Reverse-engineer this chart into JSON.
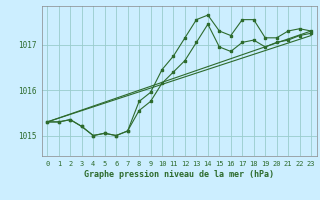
{
  "title": "Graphe pression niveau de la mer (hPa)",
  "background_color": "#cceeff",
  "grid_color": "#99cccc",
  "line_color": "#2d6b2d",
  "x_ticks": [
    0,
    1,
    2,
    3,
    4,
    5,
    6,
    7,
    8,
    9,
    10,
    11,
    12,
    13,
    14,
    15,
    16,
    17,
    18,
    19,
    20,
    21,
    22,
    23
  ],
  "y_ticks": [
    1015,
    1016,
    1017
  ],
  "xlim": [
    -0.5,
    23.5
  ],
  "ylim": [
    1014.55,
    1017.85
  ],
  "series_main": [
    1015.3,
    1015.3,
    1015.35,
    1015.2,
    1015.0,
    1015.05,
    1015.0,
    1015.1,
    1015.55,
    1015.75,
    1016.15,
    1016.4,
    1016.65,
    1017.05,
    1017.45,
    1016.95,
    1016.85,
    1017.05,
    1017.1,
    1016.95,
    1017.05,
    1017.1,
    1017.2,
    1017.25
  ],
  "series_high": [
    1015.3,
    1015.3,
    1015.35,
    1015.2,
    1015.0,
    1015.05,
    1015.0,
    1015.1,
    1015.75,
    1015.95,
    1016.45,
    1016.75,
    1017.15,
    1017.55,
    1017.65,
    1017.3,
    1017.2,
    1017.55,
    1017.55,
    1017.15,
    1017.15,
    1017.3,
    1017.35,
    1017.3
  ],
  "trend1_x": [
    0,
    23
  ],
  "trend1_y": [
    1015.3,
    1017.2
  ],
  "trend2_x": [
    0,
    23
  ],
  "trend2_y": [
    1015.3,
    1017.3
  ],
  "label_fontsize": 5.5,
  "tick_fontsize": 5,
  "xlabel_fontsize": 6
}
